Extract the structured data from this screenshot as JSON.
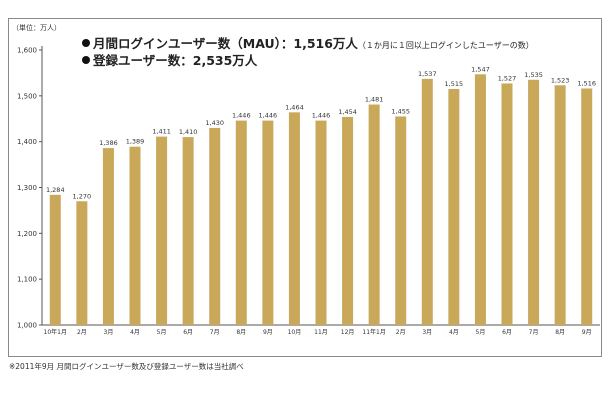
{
  "unit_label": "（単位：万人）",
  "headline": {
    "mau_text": "月間ログインユーザー数（MAU）：1,516万人",
    "mau_note": "（１か月に１回以上ログインしたユーザーの数）",
    "registered_text": "登録ユーザー数：2,535万人"
  },
  "footnote": "※2011年9月  月間ログインユーザー数及び登録ユーザー数は当社調べ",
  "colors": {
    "bar": "#c9a85a",
    "axis": "#555555",
    "frame": "#8a8a8a"
  },
  "chart_data": {
    "type": "bar",
    "categories": [
      "10年1月",
      "2月",
      "3月",
      "4月",
      "5月",
      "6月",
      "7月",
      "8月",
      "9月",
      "10月",
      "11月",
      "12月",
      "11年1月",
      "2月",
      "3月",
      "4月",
      "5月",
      "6月",
      "7月",
      "8月",
      "9月"
    ],
    "values": [
      1284,
      1270,
      1386,
      1389,
      1411,
      1410,
      1430,
      1446,
      1446,
      1464,
      1446,
      1454,
      1481,
      1455,
      1537,
      1515,
      1547,
      1527,
      1535,
      1523,
      1516
    ],
    "value_labels": [
      "1,284",
      "1,270",
      "1,386",
      "1,389",
      "1,411",
      "1,410",
      "1,430",
      "1,446",
      "1,446",
      "1,464",
      "1,446",
      "1,454",
      "1,481",
      "1,455",
      "1,537",
      "1,515",
      "1,547",
      "1,527",
      "1,535",
      "1,523",
      "1,516"
    ],
    "yticks": [
      1000,
      1100,
      1200,
      1300,
      1400,
      1500,
      1600
    ],
    "ytick_labels": [
      "1,000",
      "1,100",
      "1,200",
      "1,300",
      "1,400",
      "1,500",
      "1,600"
    ],
    "ylim": [
      1000,
      1600
    ],
    "grid": false,
    "legend": "none"
  }
}
